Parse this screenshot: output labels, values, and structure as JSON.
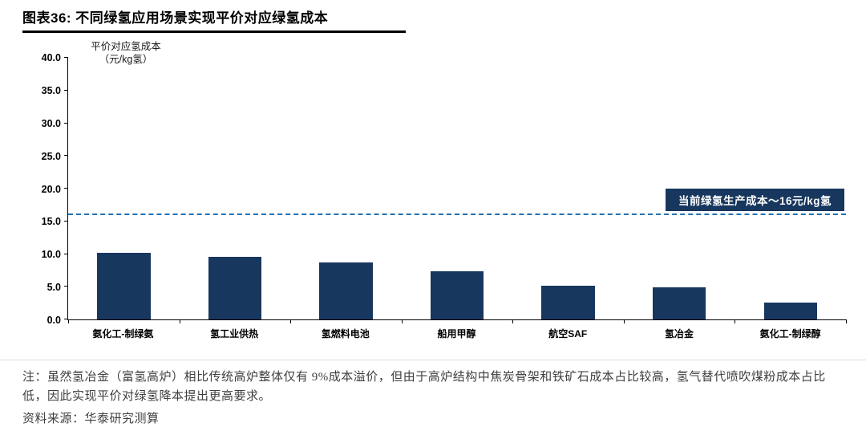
{
  "header": {
    "title": "图表36:  不同绿氢应用场景实现平价对应绿氢成本"
  },
  "chart_data": {
    "type": "bar",
    "ylabel_line1": "平价对应氢成本",
    "ylabel_line2": "（元/kg氢）",
    "categories": [
      "氨化工-制绿氨",
      "氢工业供热",
      "氢燃料电池",
      "船用甲醇",
      "航空SAF",
      "氢冶金",
      "氨化工-制绿醇"
    ],
    "values": [
      10.2,
      9.6,
      8.7,
      7.4,
      5.2,
      4.9,
      2.6
    ],
    "ylim": [
      0,
      40
    ],
    "yticks": [
      0.0,
      5.0,
      10.0,
      15.0,
      20.0,
      25.0,
      30.0,
      35.0,
      40.0
    ],
    "reference_line": {
      "value": 16,
      "label": "当前绿氢生产成本～16元/kg氢"
    },
    "bar_color": "#17375E",
    "line_color": "#2271B3",
    "legend_position": "none",
    "grid": false
  },
  "footer": {
    "note": "注：虽然氢冶金（富氢高炉）相比传统高炉整体仅有 9%成本溢价，但由于高炉结构中焦炭骨架和铁矿石成本占比较高，氢气替代喷吹煤粉成本占比低，因此实现平价对绿氢降本提出更高要求。",
    "source": "资料来源：华泰研究测算"
  }
}
